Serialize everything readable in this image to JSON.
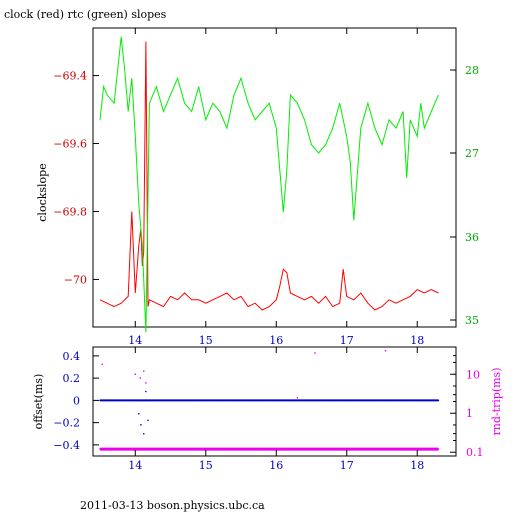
{
  "chart_data": [
    {
      "type": "line",
      "title": "clock (red) rtc (green) slopes",
      "ylabel": "clockslope",
      "xlim": [
        13.4,
        18.55
      ],
      "ylim": [
        -70.14,
        -69.26
      ],
      "y2lim": [
        34.95,
        28.6
      ],
      "xticks": [
        "14",
        "15",
        "16",
        "17",
        "18"
      ],
      "yticks": [
        "-69.4",
        "-69.6",
        "-69.8",
        "-70"
      ],
      "y2ticks": [
        "28",
        "27",
        "36",
        "35"
      ],
      "grid": false,
      "series": [
        {
          "color": "#ff0000",
          "axis": "left",
          "x": [
            13.5,
            13.6,
            13.7,
            13.8,
            13.9,
            13.95,
            14.0,
            14.05,
            14.08,
            14.1,
            14.12,
            14.15,
            14.18,
            14.2,
            14.3,
            14.4,
            14.5,
            14.6,
            14.7,
            14.8,
            14.9,
            15.0,
            15.1,
            15.2,
            15.3,
            15.4,
            15.5,
            15.6,
            15.7,
            15.8,
            15.9,
            16.0,
            16.05,
            16.1,
            16.15,
            16.2,
            16.3,
            16.4,
            16.5,
            16.6,
            16.7,
            16.8,
            16.9,
            16.95,
            17.0,
            17.1,
            17.2,
            17.3,
            17.4,
            17.5,
            17.6,
            17.7,
            17.8,
            17.9,
            18.0,
            18.1,
            18.2,
            18.3
          ],
          "y": [
            -70.06,
            -70.07,
            -70.08,
            -70.07,
            -70.05,
            -69.8,
            -70.04,
            -69.9,
            -69.85,
            -69.96,
            -69.92,
            -69.3,
            -70.08,
            -70.06,
            -70.07,
            -70.08,
            -70.05,
            -70.06,
            -70.04,
            -70.06,
            -70.06,
            -70.07,
            -70.06,
            -70.05,
            -70.04,
            -70.06,
            -70.05,
            -70.08,
            -70.07,
            -70.09,
            -70.08,
            -70.06,
            -70.02,
            -69.97,
            -69.98,
            -70.04,
            -70.05,
            -70.06,
            -70.05,
            -70.07,
            -70.05,
            -70.08,
            -70.07,
            -69.97,
            -70.05,
            -70.06,
            -70.04,
            -70.07,
            -70.09,
            -70.08,
            -70.06,
            -70.07,
            -70.06,
            -70.05,
            -70.03,
            -70.04,
            -70.03,
            -70.04
          ]
        },
        {
          "color": "#00ee00",
          "axis": "right",
          "x": [
            13.5,
            13.55,
            13.6,
            13.7,
            13.8,
            13.85,
            13.9,
            13.95,
            14.0,
            14.05,
            14.1,
            14.15,
            14.2,
            14.3,
            14.4,
            14.5,
            14.6,
            14.7,
            14.8,
            14.9,
            15.0,
            15.1,
            15.2,
            15.3,
            15.4,
            15.5,
            15.6,
            15.7,
            15.8,
            15.9,
            16.0,
            16.1,
            16.15,
            16.2,
            16.3,
            16.4,
            16.5,
            16.6,
            16.7,
            16.8,
            16.9,
            17.0,
            17.05,
            17.1,
            17.2,
            17.3,
            17.4,
            17.5,
            17.6,
            17.7,
            17.8,
            17.85,
            17.9,
            18.0,
            18.05,
            18.1,
            18.2,
            18.3
          ],
          "y": [
            27.4,
            27.8,
            27.7,
            27.6,
            28.4,
            28.0,
            27.5,
            27.9,
            27.2,
            36.4,
            35.9,
            34.85,
            27.6,
            27.8,
            27.5,
            27.7,
            27.9,
            27.6,
            27.5,
            27.8,
            27.4,
            27.6,
            27.5,
            27.3,
            27.7,
            27.9,
            27.6,
            27.4,
            27.5,
            27.6,
            27.3,
            36.3,
            36.8,
            27.7,
            27.6,
            27.4,
            27.1,
            27.0,
            27.1,
            27.3,
            27.6,
            27.2,
            36.9,
            36.2,
            27.3,
            27.6,
            27.3,
            27.1,
            27.4,
            27.3,
            27.5,
            26.7,
            27.4,
            27.2,
            27.6,
            27.3,
            27.5,
            27.7
          ]
        }
      ]
    },
    {
      "type": "scatter",
      "ylabel": "offset(ms)",
      "y2label": "rnd-trip(ms)",
      "xlim": [
        13.4,
        18.55
      ],
      "ylim": [
        -0.5,
        0.48
      ],
      "y2lim": [
        0.08,
        50
      ],
      "y2scale": "log",
      "xticks": [
        "14",
        "15",
        "16",
        "17",
        "18"
      ],
      "yticks": [
        "0.4",
        "0.2",
        "0",
        "-0.2",
        "-0.4"
      ],
      "y2ticks": [
        "10",
        "1",
        "0.1"
      ],
      "grid": false,
      "series": [
        {
          "color": "#0000cc",
          "axis": "left",
          "x": [
            13.5,
            13.6,
            13.7,
            13.8,
            13.9,
            14.0,
            14.05,
            14.1,
            14.15,
            14.2,
            14.3,
            14.4,
            14.5,
            14.6,
            14.7,
            14.8,
            14.9,
            15.0,
            15.2,
            15.4,
            15.6,
            15.8,
            16.0,
            16.2,
            16.4,
            16.6,
            16.8,
            17.0,
            17.2,
            17.4,
            17.6,
            17.8,
            18.0,
            18.2,
            18.3,
            14.05,
            14.08,
            14.12,
            14.15,
            14.18
          ],
          "y": [
            0.0,
            0.0,
            0.0,
            0.0,
            0.0,
            0.0,
            0.0,
            0.0,
            0.0,
            0.0,
            0.0,
            0.0,
            0.0,
            0.0,
            0.0,
            0.0,
            0.0,
            0.0,
            0.0,
            0.0,
            0.0,
            0.0,
            0.0,
            0.0,
            0.0,
            0.0,
            0.0,
            0.0,
            0.0,
            0.0,
            0.0,
            0.0,
            0.0,
            0.0,
            0.0,
            -0.12,
            -0.22,
            -0.3,
            0.08,
            -0.18
          ]
        },
        {
          "color": "#ee00ee",
          "axis": "right",
          "x": [
            13.5,
            13.6,
            13.7,
            13.8,
            13.9,
            14.0,
            14.05,
            14.1,
            14.15,
            14.2,
            14.3,
            14.4,
            14.5,
            14.6,
            14.7,
            14.8,
            14.9,
            15.0,
            15.2,
            15.4,
            15.6,
            15.8,
            16.0,
            16.2,
            16.4,
            16.6,
            16.8,
            17.0,
            17.2,
            17.4,
            17.6,
            17.8,
            18.0,
            18.2,
            18.3,
            14.0,
            14.07,
            14.12,
            14.15,
            16.55,
            17.55,
            13.53,
            16.3
          ],
          "y": [
            0.12,
            0.12,
            0.12,
            0.12,
            0.12,
            0.12,
            0.12,
            0.12,
            0.12,
            0.12,
            0.12,
            0.12,
            0.12,
            0.12,
            0.12,
            0.12,
            0.12,
            0.12,
            0.12,
            0.12,
            0.12,
            0.12,
            0.12,
            0.12,
            0.12,
            0.12,
            0.12,
            0.12,
            0.12,
            0.12,
            0.12,
            0.12,
            0.12,
            0.12,
            0.12,
            10,
            8,
            12,
            6,
            35,
            40,
            18,
            2.5
          ]
        }
      ]
    }
  ],
  "footer": {
    "text": "2011-03-13  boson.physics.ubc.ca"
  },
  "colors": {
    "red": "#ff0000",
    "green": "#00ee00",
    "blue": "#0000cc",
    "magenta": "#ee00ee",
    "axis": "#000000"
  }
}
